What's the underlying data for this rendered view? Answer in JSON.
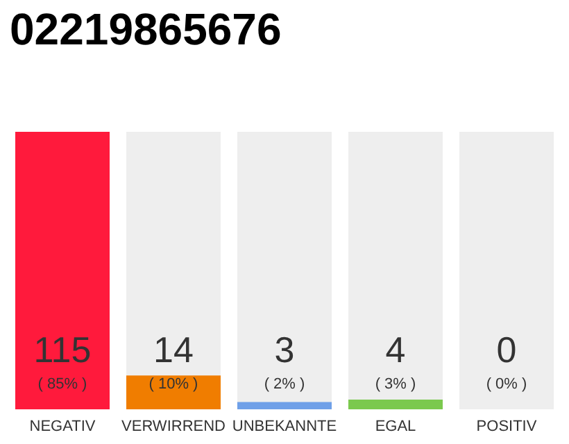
{
  "chart_data": {
    "type": "bar",
    "title": "02219865676",
    "categories": [
      "NEGATIV",
      "VERWIRREND",
      "UNBEKANNTE",
      "EGAL",
      "POSITIV"
    ],
    "values": [
      115,
      14,
      3,
      4,
      0
    ],
    "colors": [
      "#ff1a3c",
      "#f07d00",
      "#6fa0e8",
      "#7bc94e",
      "#cccccc"
    ],
    "data_labels": true,
    "annotations": [
      "( 85% )",
      "( 10% )",
      "( 2% )",
      "( 3% )",
      "( 0% )"
    ]
  }
}
